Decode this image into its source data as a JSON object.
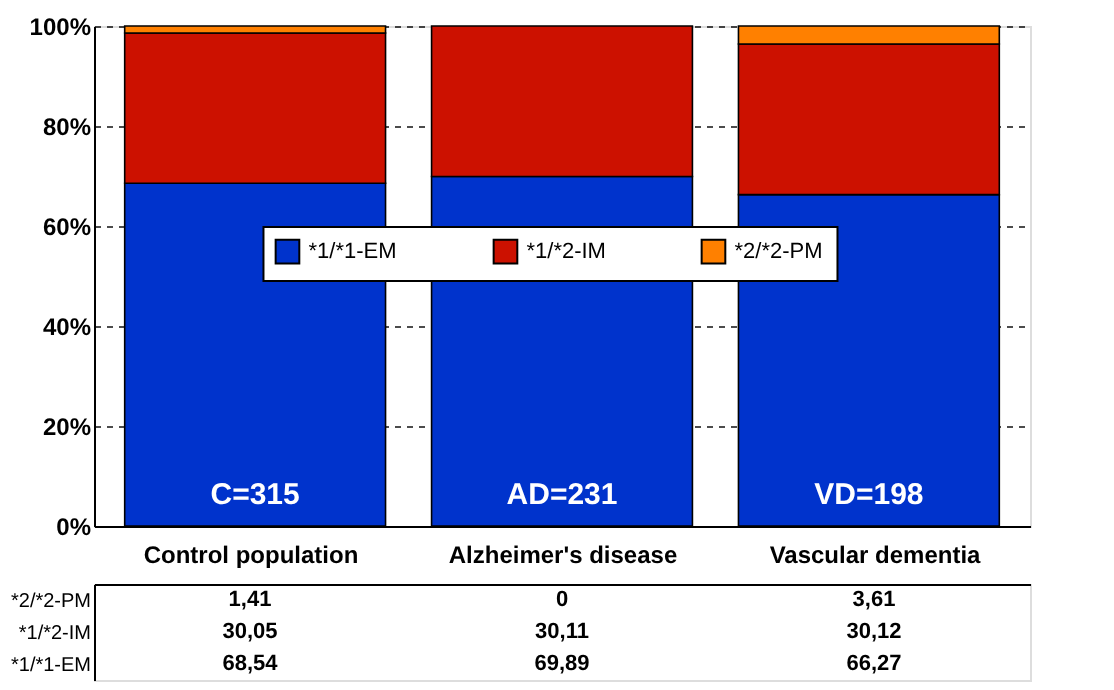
{
  "chart_data": {
    "type": "bar",
    "stacked": true,
    "categories": [
      "Control population",
      "Alzheimer's disease",
      "Vascular dementia"
    ],
    "series": [
      {
        "name": "*1/*1-EM",
        "color": "#0033cc",
        "values": [
          68.54,
          69.89,
          66.27
        ],
        "value_labels": [
          "68,54",
          "69,89",
          "66,27"
        ]
      },
      {
        "name": "*1/*2-IM",
        "color": "#cc1100",
        "values": [
          30.05,
          30.11,
          30.12
        ],
        "value_labels": [
          "30,05",
          "30,11",
          "30,12"
        ]
      },
      {
        "name": "*2/*2-PM",
        "color": "#ff8000",
        "values": [
          1.41,
          0,
          3.61
        ],
        "value_labels": [
          "1,41",
          "0",
          "3,61"
        ]
      }
    ],
    "ylim": [
      0,
      100
    ],
    "yticks": [
      {
        "value": 0,
        "label": "0%"
      },
      {
        "value": 20,
        "label": "20%"
      },
      {
        "value": 40,
        "label": "40%"
      },
      {
        "value": 60,
        "label": "60%"
      },
      {
        "value": 80,
        "label": "80%"
      },
      {
        "value": 100,
        "label": "100%"
      }
    ],
    "grid": "y",
    "legend": "center",
    "annotations": [
      "C=315",
      "AD=231",
      "VD=198"
    ]
  }
}
